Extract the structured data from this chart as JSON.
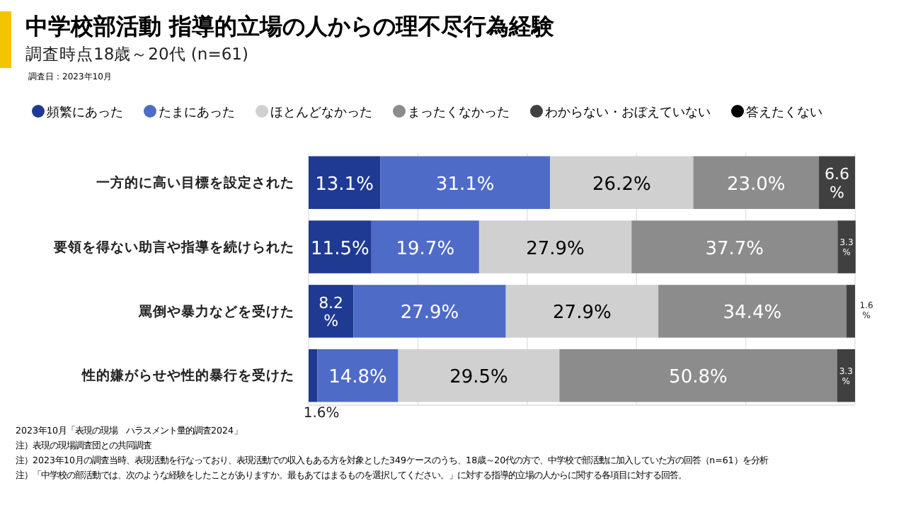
{
  "chart_data": {
    "type": "bar",
    "orientation": "horizontal",
    "stacked": true,
    "title": "中学校部活動 指導的立場の人からの理不尽行為経験",
    "subtitle": "調査時点18歳～20代 (n=61)",
    "categories": [
      "一方的に高い目標を設定された",
      "要領を得ない助言や指導を続けられた",
      "罵倒や暴力などを受けた",
      "性的嫌がらせや性的暴行を受けた"
    ],
    "series": [
      {
        "name": "頻繁にあった",
        "color": "#1f3a93",
        "values": [
          13.1,
          11.5,
          8.2,
          1.6
        ],
        "value_labels": [
          "13.1%",
          "11.5%",
          "8.2%",
          "1.6%"
        ]
      },
      {
        "name": "たまにあった",
        "color": "#4f6bc8",
        "values": [
          31.1,
          19.7,
          27.9,
          14.8
        ],
        "value_labels": [
          "31.1%",
          "19.7%",
          "27.9%",
          "14.8%"
        ]
      },
      {
        "name": "ほとんどなかった",
        "color": "#d0d0d0",
        "values": [
          26.2,
          27.9,
          27.9,
          29.5
        ],
        "value_labels": [
          "26.2%",
          "27.9%",
          "27.9%",
          "29.5%"
        ]
      },
      {
        "name": "まったくなかった",
        "color": "#8c8c8c",
        "values": [
          23.0,
          37.7,
          34.4,
          50.8
        ],
        "value_labels": [
          "23.0%",
          "37.7%",
          "34.4%",
          "50.8%"
        ]
      },
      {
        "name": "わからない・おぼえていない",
        "color": "#404040",
        "values": [
          6.6,
          3.3,
          1.6,
          3.3
        ],
        "value_labels": [
          "6.6%",
          "3.3%",
          "1.6%",
          "3.3%"
        ]
      },
      {
        "name": "答えたくない",
        "color": "#000000",
        "values": [
          null,
          null,
          null,
          null
        ],
        "value_labels": [
          null,
          null,
          null,
          null
        ]
      }
    ],
    "xlim": [
      0,
      100
    ],
    "xticks": [
      {
        "value": 0,
        "label": null
      },
      {
        "value": 20,
        "label": null
      },
      {
        "value": 40,
        "label": null
      },
      {
        "value": 60,
        "label": null
      },
      {
        "value": 80,
        "label": null
      },
      {
        "value": 100,
        "label": null
      }
    ],
    "grid": "x",
    "tick_labels": "y",
    "legend": "top",
    "annotations": [
      "調査日：2023年10月",
      "2023年10月「表現の現場　ハラスメント量的調査2024」",
      "注）表現の現場調査団との共同調査",
      "注）2023年10月の調査当時、表現活動を行なっており、表現活動での収入もある方を対象とした349ケースのうち、18歳～20代の方で、中学校で部活動に加入していた方の回答（n=61）を分析",
      "注）「中学校の部活動では、次のような経験をしたことがありますか。最もあてはまるものを選択してください。」に対する指導的立場の人からに関する各項目に対する回答。"
    ]
  }
}
